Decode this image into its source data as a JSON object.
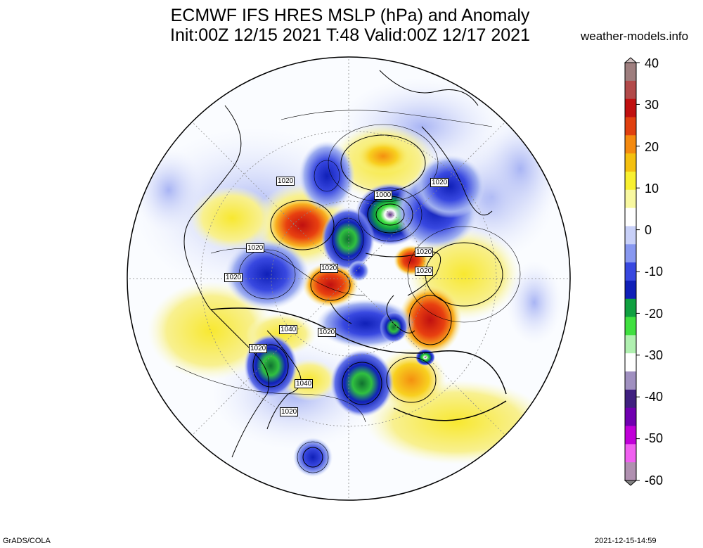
{
  "header": {
    "title_line1": "ECMWF IFS HRES MSLP (hPa) and Anomaly",
    "title_line2": "Init:00Z 12/15 2021 T:48 Valid:00Z 12/17 2021",
    "site": "weather-models.info"
  },
  "footer": {
    "credit": "GrADS/COLA",
    "timestamp": "2021-12-15-14:59"
  },
  "colorbar": {
    "ticks": [
      "40",
      "30",
      "20",
      "10",
      "0",
      "-10",
      "-20",
      "-30",
      "-40",
      "-50",
      "-60"
    ],
    "colors": [
      "#9e7e7e",
      "#b24a4a",
      "#c01010",
      "#e04010",
      "#f48a10",
      "#f4c010",
      "#f8f030",
      "#f8f8a0",
      "#ffffff",
      "#c8d0f8",
      "#8898f0",
      "#3848e0",
      "#1020b8",
      "#10a040",
      "#40e040",
      "#b0f0b0",
      "#ffffff",
      "#a090c0",
      "#402080",
      "#7000b0",
      "#c000d8",
      "#f060f0",
      "#b090b0"
    ],
    "accent_top": "#d0c0c0",
    "accent_bottom": "#808080"
  },
  "map": {
    "projection": "north-polar-stereographic",
    "isobar_labels": [
      {
        "text": "1020",
        "id": "a"
      },
      {
        "text": "1000",
        "id": "b"
      },
      {
        "text": "1020",
        "id": "c"
      },
      {
        "text": "1020",
        "id": "d"
      },
      {
        "text": "1020",
        "id": "e"
      },
      {
        "text": "1020",
        "id": "f"
      },
      {
        "text": "1020",
        "id": "g"
      },
      {
        "text": "1020",
        "id": "h"
      },
      {
        "text": "1020",
        "id": "i"
      },
      {
        "text": "1040",
        "id": "j"
      },
      {
        "text": "1020",
        "id": "k"
      },
      {
        "text": "1040",
        "id": "l"
      },
      {
        "text": "1020",
        "id": "m"
      },
      {
        "text": "1020",
        "id": "n"
      }
    ]
  }
}
